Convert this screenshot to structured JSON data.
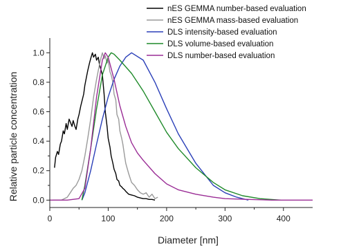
{
  "chart_data": {
    "type": "line",
    "title": "",
    "xlabel": "Diameter [nm]",
    "ylabel": "Relative particle concentration",
    "xlim": [
      0,
      450
    ],
    "ylim": [
      -0.05,
      1.1
    ],
    "x_ticks": [
      0,
      100,
      200,
      300,
      400
    ],
    "y_ticks": [
      0.0,
      0.2,
      0.4,
      0.6,
      0.8,
      1.0
    ],
    "y_tick_labels": [
      "0.0",
      "0.2",
      "0.4",
      "0.6",
      "0.8",
      "1.0"
    ],
    "grid": false,
    "legend_position": "top-right",
    "series": [
      {
        "name": "nES GEMMA number-based evaluation",
        "color": "#000000",
        "x": [
          8,
          10,
          13,
          15,
          18,
          20,
          23,
          25,
          28,
          30,
          33,
          35,
          38,
          40,
          43,
          45,
          48,
          50,
          53,
          55,
          58,
          60,
          63,
          65,
          68,
          70,
          73,
          75,
          78,
          80,
          83,
          85,
          88,
          90,
          93,
          95,
          98,
          100,
          103,
          105,
          108,
          110,
          113,
          115,
          118,
          120,
          123,
          125,
          128,
          130,
          135,
          140,
          145,
          150,
          155,
          160,
          165,
          170,
          175,
          180
        ],
        "values": [
          0.22,
          0.29,
          0.33,
          0.31,
          0.38,
          0.4,
          0.47,
          0.45,
          0.52,
          0.48,
          0.55,
          0.53,
          0.5,
          0.54,
          0.5,
          0.48,
          0.55,
          0.58,
          0.64,
          0.67,
          0.72,
          0.78,
          0.84,
          0.88,
          0.93,
          0.96,
          1.0,
          0.97,
          0.99,
          0.95,
          0.97,
          0.92,
          0.88,
          0.85,
          0.72,
          0.6,
          0.5,
          0.42,
          0.36,
          0.3,
          0.25,
          0.21,
          0.18,
          0.14,
          0.13,
          0.1,
          0.09,
          0.08,
          0.07,
          0.06,
          0.04,
          0.035,
          0.03,
          0.02,
          0.015,
          0.01,
          0.01,
          0.005,
          0.005,
          0.0
        ]
      },
      {
        "name": "nES GEMMA mass-based evaluation",
        "color": "#9a9a9a",
        "x": [
          5,
          20,
          30,
          35,
          40,
          45,
          50,
          55,
          60,
          65,
          70,
          75,
          80,
          85,
          88,
          90,
          93,
          95,
          98,
          100,
          103,
          105,
          108,
          110,
          113,
          115,
          118,
          120,
          123,
          125,
          128,
          130,
          135,
          140,
          145,
          150,
          155,
          160,
          165,
          170,
          175,
          180,
          185
        ],
        "values": [
          0.0,
          0.0,
          0.02,
          0.05,
          0.08,
          0.1,
          0.14,
          0.2,
          0.3,
          0.42,
          0.55,
          0.7,
          0.82,
          0.92,
          0.97,
          1.0,
          0.96,
          0.98,
          0.93,
          0.95,
          0.87,
          0.85,
          0.8,
          0.72,
          0.68,
          0.58,
          0.55,
          0.47,
          0.42,
          0.38,
          0.3,
          0.25,
          0.18,
          0.12,
          0.1,
          0.07,
          0.05,
          0.04,
          0.05,
          0.02,
          0.04,
          0.01,
          0.02
        ]
      },
      {
        "name": "DLS intensity-based evaluation",
        "color": "#2a3fb8",
        "x": [
          55,
          60,
          70,
          80,
          90,
          100,
          110,
          120,
          130,
          140,
          160,
          180,
          200,
          220,
          250,
          280,
          300,
          320,
          340
        ],
        "values": [
          0.0,
          0.05,
          0.2,
          0.38,
          0.55,
          0.7,
          0.82,
          0.91,
          0.97,
          1.0,
          0.95,
          0.8,
          0.62,
          0.45,
          0.25,
          0.1,
          0.05,
          0.02,
          0.0
        ]
      },
      {
        "name": "DLS volume-based evaluation",
        "color": "#1f8a2a",
        "x": [
          55,
          60,
          70,
          80,
          90,
          100,
          105,
          110,
          120,
          140,
          160,
          180,
          200,
          220,
          250,
          280,
          300,
          330,
          360,
          395
        ],
        "values": [
          0.0,
          0.1,
          0.35,
          0.62,
          0.85,
          0.97,
          1.0,
          0.99,
          0.95,
          0.86,
          0.74,
          0.6,
          0.46,
          0.35,
          0.22,
          0.12,
          0.07,
          0.03,
          0.01,
          0.0
        ]
      },
      {
        "name": "DLS number-based evaluation",
        "color": "#9a2c95",
        "x": [
          0,
          30,
          50,
          60,
          70,
          80,
          90,
          95,
          100,
          110,
          120,
          130,
          140,
          150,
          160,
          180,
          200,
          220,
          250,
          280,
          300,
          340,
          380,
          410,
          450
        ],
        "values": [
          0.0,
          0.0,
          0.01,
          0.08,
          0.35,
          0.7,
          0.95,
          1.0,
          0.97,
          0.82,
          0.64,
          0.5,
          0.39,
          0.32,
          0.27,
          0.18,
          0.11,
          0.07,
          0.04,
          0.02,
          0.01,
          0.005,
          0.0,
          0.0,
          0.0
        ]
      }
    ]
  }
}
